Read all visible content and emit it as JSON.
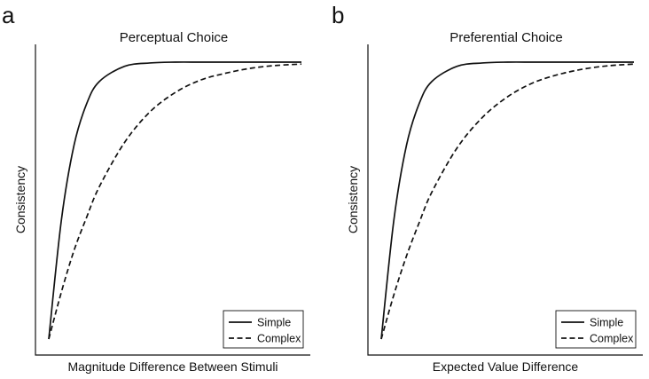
{
  "chart_data": [
    {
      "type": "line",
      "panel_letter": "a",
      "title": "Perceptual Choice",
      "xlabel": "Magnitude Difference Between Stimuli",
      "ylabel": "Consistency",
      "xlim": [
        0,
        1
      ],
      "ylim": [
        0,
        1
      ],
      "grid": false,
      "legend_position": "bottom-right",
      "x": [
        0,
        0.05,
        0.1,
        0.15,
        0.2,
        0.3,
        0.4,
        0.5,
        0.6,
        0.7,
        0.8,
        0.9,
        1.0
      ],
      "series": [
        {
          "name": "Simple",
          "style": "solid",
          "values": [
            0.0,
            0.43,
            0.7,
            0.85,
            0.93,
            0.985,
            0.997,
            1.0,
            1.0,
            1.0,
            1.0,
            1.0,
            1.0
          ]
        },
        {
          "name": "Complex",
          "style": "dashed",
          "values": [
            0.0,
            0.17,
            0.32,
            0.44,
            0.55,
            0.71,
            0.82,
            0.89,
            0.935,
            0.96,
            0.978,
            0.988,
            0.993
          ]
        }
      ]
    },
    {
      "type": "line",
      "panel_letter": "b",
      "title": "Preferential Choice",
      "xlabel": "Expected Value Difference",
      "ylabel": "Consistency",
      "xlim": [
        0,
        1
      ],
      "ylim": [
        0,
        1
      ],
      "grid": false,
      "legend_position": "bottom-right",
      "x": [
        0,
        0.05,
        0.1,
        0.15,
        0.2,
        0.3,
        0.4,
        0.5,
        0.6,
        0.7,
        0.8,
        0.9,
        1.0
      ],
      "series": [
        {
          "name": "Simple",
          "style": "solid",
          "values": [
            0.0,
            0.43,
            0.7,
            0.85,
            0.93,
            0.985,
            0.997,
            1.0,
            1.0,
            1.0,
            1.0,
            1.0,
            1.0
          ]
        },
        {
          "name": "Complex",
          "style": "dashed",
          "values": [
            0.0,
            0.16,
            0.3,
            0.42,
            0.53,
            0.69,
            0.8,
            0.875,
            0.925,
            0.955,
            0.975,
            0.987,
            0.993
          ]
        }
      ]
    }
  ]
}
